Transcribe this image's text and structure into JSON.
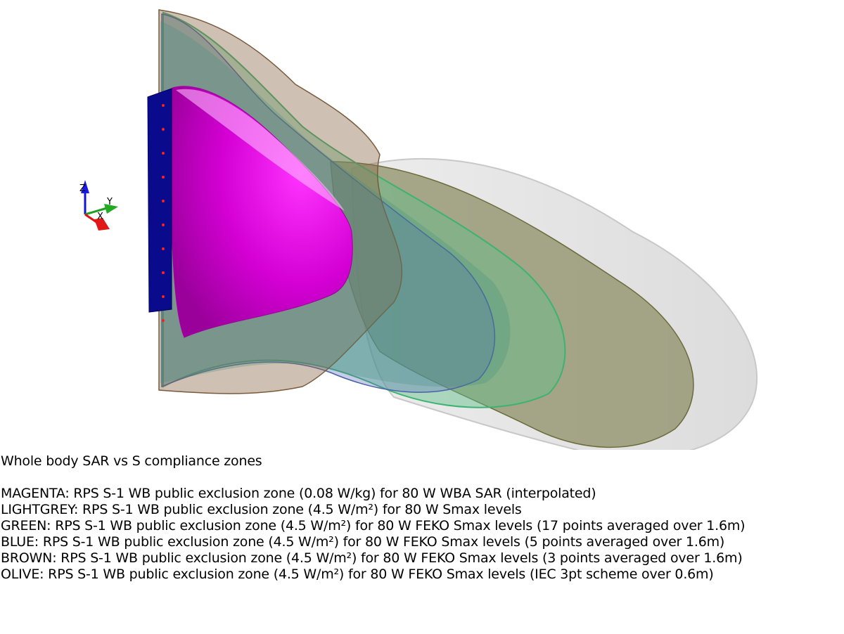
{
  "title": "Whole body SAR vs S compliance zones",
  "legend": [
    {
      "color_name": "MAGENTA",
      "text": "MAGENTA: RPS S-1 WB public exclusion zone (0.08 W/kg) for 80 W WBA SAR (interpolated)",
      "color": "#ff00ff"
    },
    {
      "color_name": "LIGHTGREY",
      "text": "LIGHTGREY: RPS S-1 WB public exclusion zone (4.5 W/m²) for 80 W Smax levels",
      "color": "#d3d3d3"
    },
    {
      "color_name": "GREEN",
      "text": "GREEN: RPS S-1 WB public exclusion zone (4.5 W/m²) for 80 W FEKO Smax levels (17 points averaged over 1.6m)",
      "color": "#3cb371"
    },
    {
      "color_name": "BLUE",
      "text": "BLUE: RPS S-1 WB public exclusion zone (4.5 W/m²) for 80 W FEKO Smax levels (5 points averaged over 1.6m)",
      "color": "#4a5fa8"
    },
    {
      "color_name": "BROWN",
      "text": "BROWN: RPS S-1 WB public exclusion zone (4.5 W/m²) for 80 W FEKO Smax levels (3 points averaged over 1.6m)",
      "color": "#8b6a4a"
    },
    {
      "color_name": "OLIVE",
      "text": "OLIVE: RPS S-1 WB public exclusion zone (4.5 W/m²) for 80 W FEKO Smax levels (IEC 3pt scheme over 0.6m)",
      "color": "#6b6b3a"
    }
  ],
  "axes_triad": {
    "x": "X",
    "y": "Y",
    "z": "Z"
  },
  "antenna_color": "#0a0a8c",
  "antenna_point_color": "#ff2020"
}
